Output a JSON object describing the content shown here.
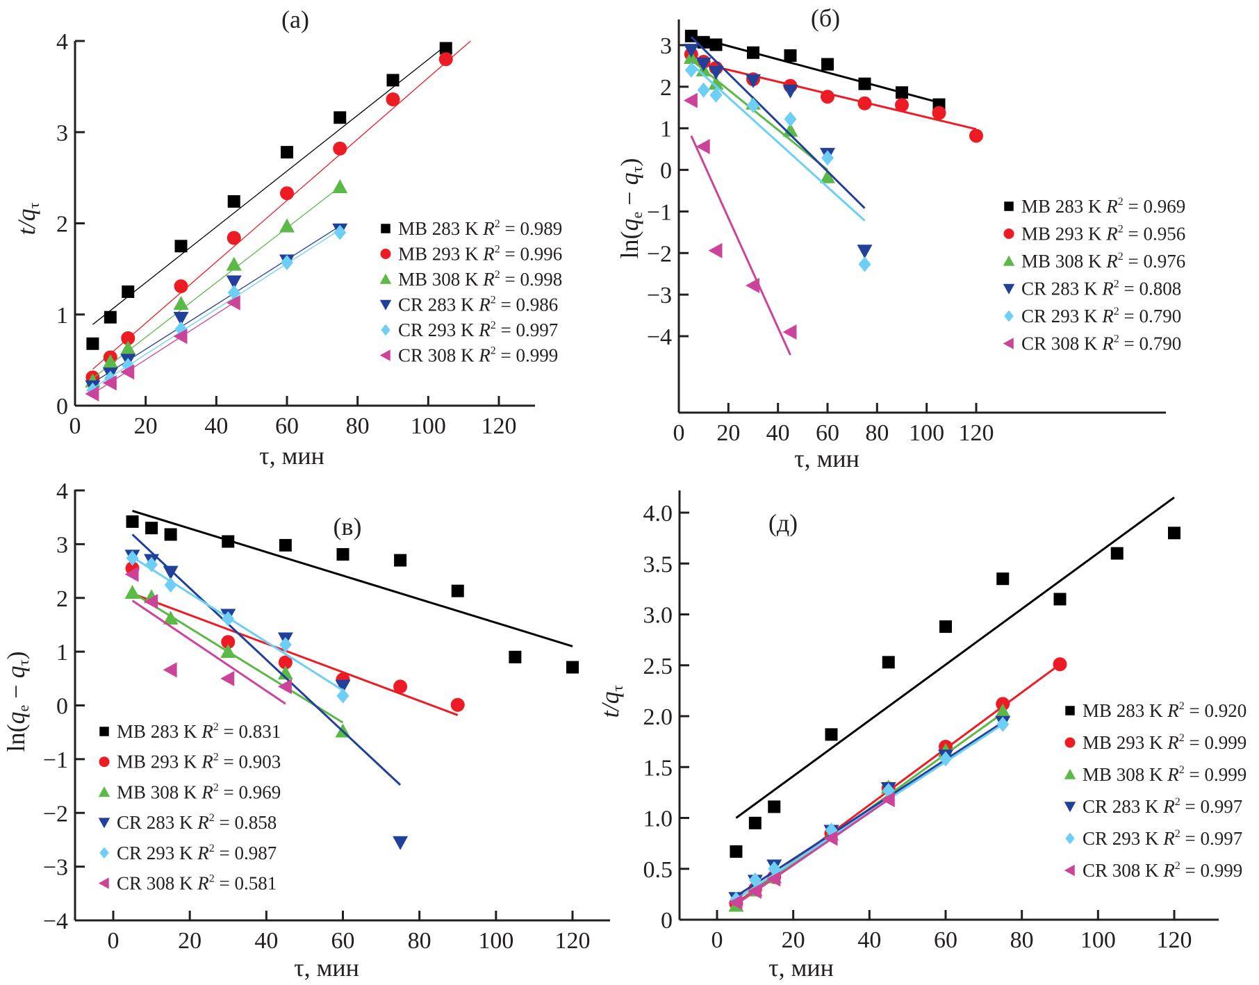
{
  "figure": {
    "panels_count": 4
  },
  "chart_data": [
    {
      "id": "a",
      "type": "scatter",
      "panel_label": "(a)",
      "title": "(a)",
      "xlabel": "τ, мин",
      "ylabel": "t/q_τ",
      "ylabel_main": "t/q",
      "ylabel_sub": "τ",
      "xlim": [
        0,
        125
      ],
      "ylim": [
        0,
        4
      ],
      "xticks": [
        0,
        20,
        40,
        60,
        80,
        100,
        120
      ],
      "yticks": [
        0,
        1,
        2,
        3,
        4
      ],
      "ytick_labels": [
        "0",
        "1",
        "2",
        "3",
        "4"
      ],
      "grid": false,
      "legend_position": "right-middle",
      "series": [
        {
          "name": "MB 283 K",
          "r2": "0.989",
          "marker": "square",
          "color": "#000000",
          "x": [
            5,
            10,
            15,
            30,
            45,
            60,
            75,
            90,
            105
          ],
          "y": [
            0.68,
            0.97,
            1.25,
            1.75,
            2.24,
            2.78,
            3.16,
            3.57,
            3.92
          ],
          "fit": [
            [
              5,
              0.89
            ],
            [
              105,
              3.95
            ]
          ]
        },
        {
          "name": "MB 293 K",
          "r2": "0.996",
          "marker": "circle",
          "color": "#ed1c24",
          "x": [
            5,
            10,
            15,
            30,
            45,
            60,
            75,
            90,
            105
          ],
          "y": [
            0.31,
            0.53,
            0.74,
            1.31,
            1.84,
            2.33,
            2.82,
            3.36,
            3.8
          ],
          "fit": [
            [
              5,
              0.4
            ],
            [
              112,
              4.0
            ]
          ]
        },
        {
          "name": "MB 308 K",
          "r2": "0.998",
          "marker": "triangle-up",
          "color": "#5bb947",
          "x": [
            5,
            10,
            15,
            30,
            45,
            60,
            75
          ],
          "y": [
            0.27,
            0.48,
            0.63,
            1.12,
            1.55,
            1.97,
            2.4
          ],
          "fit": [
            [
              5,
              0.3
            ],
            [
              75,
              2.4
            ]
          ]
        },
        {
          "name": "CR 283 K",
          "r2": "0.986",
          "marker": "triangle-down",
          "color": "#21409a",
          "x": [
            5,
            10,
            15,
            30,
            45,
            60,
            75
          ],
          "y": [
            0.21,
            0.35,
            0.5,
            0.96,
            1.36,
            1.59,
            1.93
          ],
          "fit": [
            [
              5,
              0.25
            ],
            [
              75,
              1.97
            ]
          ]
        },
        {
          "name": "CR 293 K",
          "r2": "0.997",
          "marker": "diamond",
          "color": "#6dcff6",
          "x": [
            5,
            10,
            15,
            30,
            45,
            60,
            75
          ],
          "y": [
            0.17,
            0.3,
            0.44,
            0.84,
            1.24,
            1.57,
            1.9
          ],
          "fit": [
            [
              5,
              0.19
            ],
            [
              75,
              1.93
            ]
          ]
        },
        {
          "name": "CR 308 K",
          "r2": "0.999",
          "marker": "triangle-left",
          "color": "#cc4499",
          "x": [
            5,
            10,
            15,
            30,
            45
          ],
          "y": [
            0.13,
            0.25,
            0.37,
            0.76,
            1.13
          ],
          "fit": [
            [
              5,
              0.13
            ],
            [
              45,
              1.13
            ]
          ]
        }
      ]
    },
    {
      "id": "b",
      "type": "scatter",
      "panel_label": "(б)",
      "title": "(б)",
      "xlabel": "τ, мин",
      "ylabel": "ln(q_e − q_τ)",
      "xlim": [
        0,
        130
      ],
      "ylim": [
        -4.5,
        3.5
      ],
      "xticks": [
        0,
        20,
        40,
        60,
        80,
        100,
        120
      ],
      "yticks": [
        -4,
        -3,
        -2,
        -1,
        0,
        1,
        2,
        3
      ],
      "ytick_labels": [
        "−4",
        "−3",
        "−2",
        "−1",
        "0",
        "1",
        "2",
        "3"
      ],
      "grid": false,
      "legend_position": "right-middle",
      "series": [
        {
          "name": "MB 283 K",
          "r2": "0.969",
          "marker": "square",
          "color": "#000000",
          "x": [
            5,
            10,
            15,
            30,
            45,
            60,
            75,
            90,
            105
          ],
          "y": [
            3.22,
            3.07,
            3.01,
            2.82,
            2.75,
            2.54,
            2.07,
            1.86,
            1.57
          ],
          "fit": [
            [
              5,
              3.22
            ],
            [
              105,
              1.62
            ]
          ]
        },
        {
          "name": "MB 293 K",
          "r2": "0.956",
          "marker": "circle",
          "color": "#ed1c24",
          "x": [
            5,
            10,
            15,
            30,
            45,
            60,
            75,
            90,
            105,
            120
          ],
          "y": [
            2.78,
            2.6,
            2.45,
            2.18,
            2.02,
            1.76,
            1.6,
            1.56,
            1.37,
            0.82
          ],
          "fit": [
            [
              5,
              2.62
            ],
            [
              120,
              0.98
            ]
          ]
        },
        {
          "name": "MB 308 K",
          "r2": "0.976",
          "marker": "triangle-up",
          "color": "#5bb947",
          "x": [
            5,
            10,
            15,
            30,
            45,
            60
          ],
          "y": [
            2.7,
            2.4,
            2.08,
            1.6,
            0.95,
            -0.17
          ],
          "fit": [
            [
              5,
              2.65
            ],
            [
              60,
              0.0
            ]
          ]
        },
        {
          "name": "CR 283 K",
          "r2": "0.808",
          "marker": "triangle-down",
          "color": "#21409a",
          "x": [
            5,
            10,
            15,
            30,
            45,
            60,
            75
          ],
          "y": [
            2.88,
            2.55,
            2.35,
            2.15,
            1.9,
            0.38,
            -1.95
          ],
          "fit": [
            [
              5,
              3.2
            ],
            [
              75,
              -0.92
            ]
          ]
        },
        {
          "name": "CR 293 K",
          "r2": "0.790",
          "marker": "diamond",
          "color": "#6dcff6",
          "x": [
            5,
            10,
            15,
            30,
            45,
            60,
            75
          ],
          "y": [
            2.4,
            1.92,
            1.8,
            1.55,
            1.22,
            0.29,
            -2.27
          ],
          "fit": [
            [
              5,
              2.55
            ],
            [
              75,
              -1.22
            ]
          ]
        },
        {
          "name": "CR 308 K",
          "r2": "0.790",
          "marker": "triangle-left",
          "color": "#cc4499",
          "x": [
            5,
            10,
            15,
            30,
            45
          ],
          "y": [
            1.67,
            0.56,
            -1.94,
            -2.78,
            -3.9
          ],
          "fit": [
            [
              5,
              0.82
            ],
            [
              45,
              -4.45
            ]
          ]
        }
      ]
    },
    {
      "id": "c",
      "type": "scatter",
      "panel_label": "(в)",
      "title": "(в)",
      "xlabel": "τ, мин",
      "ylabel": "ln(q_e − q_τ)",
      "xlim": [
        -10,
        130
      ],
      "ylim": [
        -4,
        4
      ],
      "xticks": [
        0,
        20,
        40,
        60,
        80,
        100,
        120
      ],
      "yticks": [
        -4,
        -3,
        -2,
        -1,
        0,
        1,
        2,
        3,
        4
      ],
      "ytick_labels": [
        "−4",
        "−3",
        "−2",
        "−1",
        "0",
        "1",
        "2",
        "3",
        "4"
      ],
      "grid": false,
      "legend_position": "left-bottom",
      "series": [
        {
          "name": "MB 283 K",
          "r2": "0.831",
          "marker": "square",
          "color": "#000000",
          "x": [
            5,
            10,
            15,
            30,
            45,
            60,
            75,
            90,
            105,
            120
          ],
          "y": [
            3.42,
            3.3,
            3.18,
            3.05,
            2.98,
            2.81,
            2.7,
            2.13,
            0.9,
            0.71
          ],
          "fit": [
            [
              5,
              3.62
            ],
            [
              120,
              1.1
            ]
          ]
        },
        {
          "name": "MB 293 K",
          "r2": "0.903",
          "marker": "circle",
          "color": "#ed1c24",
          "x": [
            5,
            30,
            45,
            60,
            75,
            90
          ],
          "y": [
            2.55,
            1.18,
            0.8,
            0.48,
            0.35,
            0.01
          ],
          "fit": [
            [
              5,
              2.08
            ],
            [
              90,
              -0.18
            ]
          ]
        },
        {
          "name": "MB 308 K",
          "r2": "0.969",
          "marker": "triangle-up",
          "color": "#5bb947",
          "x": [
            5,
            10,
            15,
            30,
            45,
            60
          ],
          "y": [
            2.1,
            2.02,
            1.62,
            1.0,
            0.6,
            -0.48
          ],
          "fit": [
            [
              5,
              2.1
            ],
            [
              60,
              -0.32
            ]
          ]
        },
        {
          "name": "CR 283 K",
          "r2": "0.858",
          "marker": "triangle-down",
          "color": "#21409a",
          "x": [
            5,
            10,
            15,
            30,
            45,
            60,
            75
          ],
          "y": [
            2.78,
            2.7,
            2.48,
            1.68,
            1.24,
            0.36,
            -2.55
          ],
          "fit": [
            [
              5,
              3.18
            ],
            [
              75,
              -1.48
            ]
          ]
        },
        {
          "name": "CR 293 K",
          "r2": "0.987",
          "marker": "diamond",
          "color": "#6dcff6",
          "x": [
            5,
            10,
            15,
            30,
            45,
            60
          ],
          "y": [
            2.74,
            2.62,
            2.24,
            1.61,
            1.13,
            0.18
          ],
          "fit": [
            [
              5,
              2.76
            ],
            [
              60,
              0.28
            ]
          ]
        },
        {
          "name": "CR 308 K",
          "r2": "0.581",
          "marker": "triangle-left",
          "color": "#cc4499",
          "x": [
            5,
            10,
            15,
            30,
            45
          ],
          "y": [
            2.44,
            1.93,
            0.66,
            0.5,
            0.35
          ],
          "fit": [
            [
              5,
              1.95
            ],
            [
              45,
              0.03
            ]
          ]
        }
      ]
    },
    {
      "id": "d",
      "type": "scatter",
      "panel_label": "(д)",
      "title": "(д)",
      "xlabel": "τ, мин",
      "ylabel": "t/q_τ",
      "ylabel_main": "t/q",
      "ylabel_sub": "τ",
      "xlim": [
        -10,
        130
      ],
      "ylim": [
        0,
        4.2
      ],
      "xticks": [
        0,
        20,
        40,
        60,
        80,
        100,
        120
      ],
      "yticks": [
        0,
        0.5,
        1.0,
        1.5,
        2.0,
        2.5,
        3.0,
        3.5,
        4.0
      ],
      "ytick_labels": [
        "0",
        "0.5",
        "1.0",
        "1.5",
        "2.0",
        "2.5",
        "3.0",
        "3.5",
        "4.0"
      ],
      "grid": false,
      "legend_position": "right-bottom",
      "series": [
        {
          "name": "MB 283 K",
          "r2": "0.920",
          "marker": "square",
          "color": "#000000",
          "x": [
            5,
            10,
            15,
            30,
            45,
            60,
            75,
            90,
            105,
            120
          ],
          "y": [
            0.67,
            0.95,
            1.11,
            1.82,
            2.53,
            2.88,
            3.35,
            3.15,
            3.6,
            3.8
          ],
          "fit": [
            [
              5,
              1.0
            ],
            [
              120,
              4.15
            ]
          ]
        },
        {
          "name": "MB 293 K",
          "r2": "0.999",
          "marker": "circle",
          "color": "#ed1c24",
          "x": [
            5,
            10,
            15,
            30,
            45,
            60,
            75,
            90
          ],
          "y": [
            0.16,
            0.3,
            0.42,
            0.85,
            1.29,
            1.7,
            2.12,
            2.51
          ],
          "fit": [
            [
              5,
              0.16
            ],
            [
              90,
              2.51
            ]
          ]
        },
        {
          "name": "MB 308 K",
          "r2": "0.999",
          "marker": "triangle-up",
          "color": "#5bb947",
          "x": [
            5,
            10,
            15,
            30,
            45,
            60,
            75
          ],
          "y": [
            0.14,
            0.29,
            0.42,
            0.84,
            1.3,
            1.66,
            2.05
          ],
          "fit": [
            [
              5,
              0.15
            ],
            [
              75,
              2.03
            ]
          ]
        },
        {
          "name": "CR 283 K",
          "r2": "0.997",
          "marker": "triangle-down",
          "color": "#21409a",
          "x": [
            5,
            10,
            15,
            30,
            45,
            60,
            75
          ],
          "y": [
            0.21,
            0.38,
            0.53,
            0.87,
            1.29,
            1.61,
            1.94
          ],
          "fit": [
            [
              5,
              0.23
            ],
            [
              75,
              1.94
            ]
          ]
        },
        {
          "name": "CR 293 K",
          "r2": "0.997",
          "marker": "diamond",
          "color": "#6dcff6",
          "x": [
            5,
            10,
            15,
            30,
            45,
            60,
            75
          ],
          "y": [
            0.2,
            0.39,
            0.5,
            0.88,
            1.27,
            1.58,
            1.92
          ],
          "fit": [
            [
              5,
              0.2
            ],
            [
              75,
              1.92
            ]
          ]
        },
        {
          "name": "CR 308 K",
          "r2": "0.999",
          "marker": "triangle-left",
          "color": "#cc4499",
          "x": [
            5,
            10,
            15,
            30,
            45
          ],
          "y": [
            0.17,
            0.28,
            0.4,
            0.8,
            1.18
          ],
          "fit": [
            [
              5,
              0.15
            ],
            [
              45,
              1.18
            ]
          ]
        }
      ]
    }
  ]
}
